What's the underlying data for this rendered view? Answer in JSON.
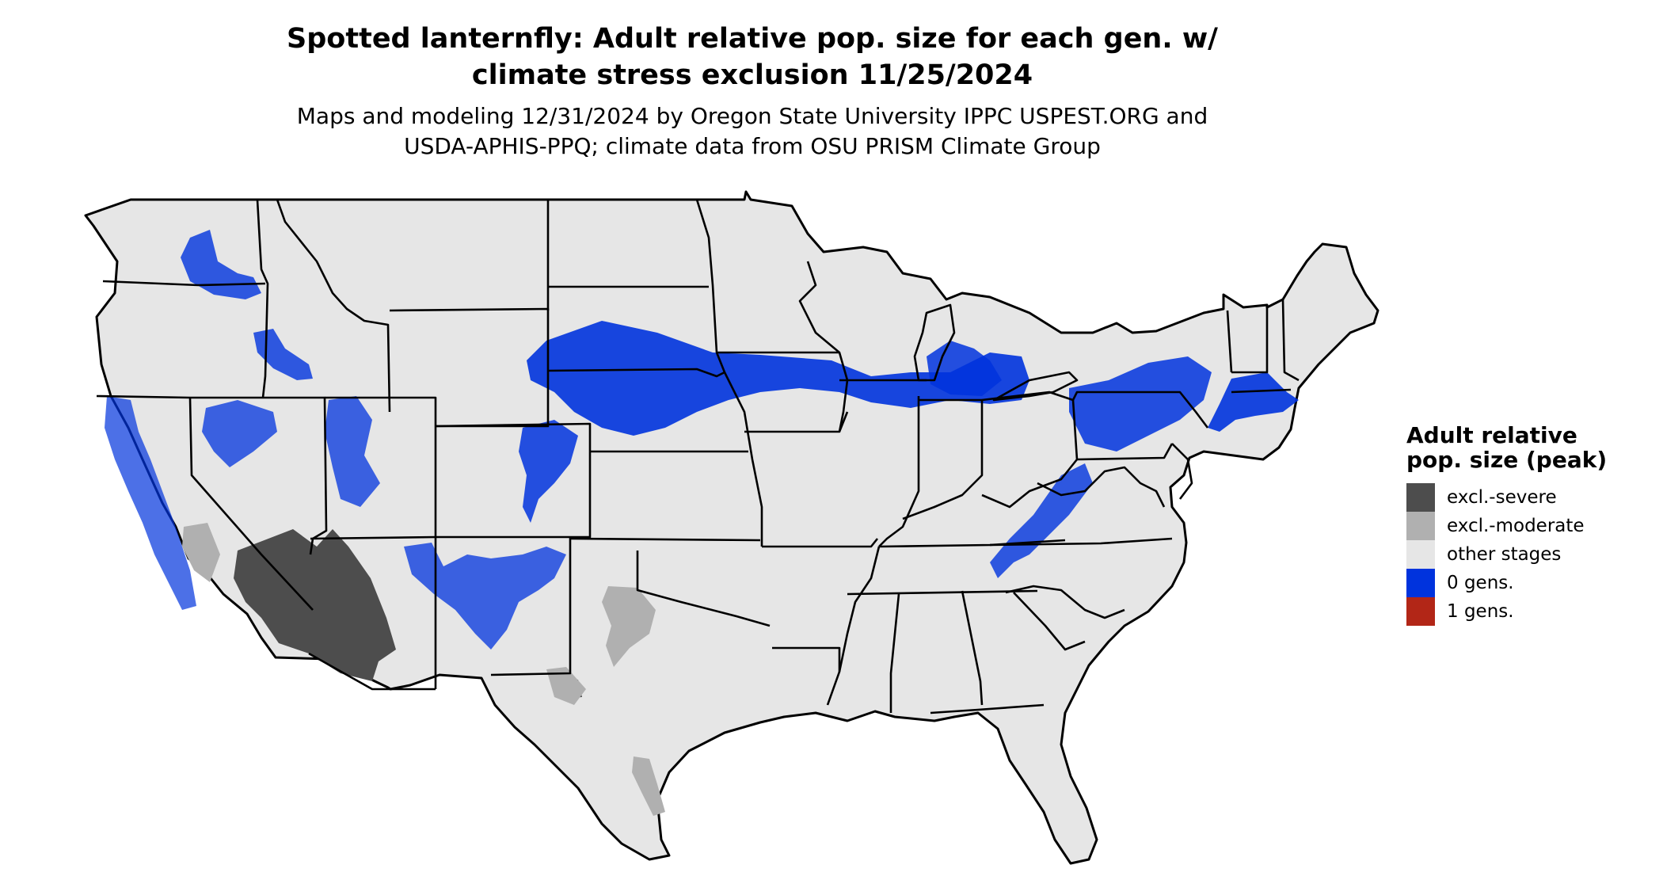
{
  "title_line1": "Spotted lanternfly: Adult relative pop. size for each gen. w/",
  "title_line2": "climate stress exclusion 11/25/2024",
  "subtitle_line1": "Maps and modeling 12/31/2024 by Oregon State University IPPC USPEST.ORG and",
  "subtitle_line2": "USDA-APHIS-PPQ; climate data from OSU PRISM Climate Group",
  "legend": {
    "title": "Adult relative pop. size (peak)",
    "items": [
      {
        "label": "excl.-severe",
        "color": "#4d4d4d"
      },
      {
        "label": "excl.-moderate",
        "color": "#b0b0b0"
      },
      {
        "label": "other stages",
        "color": "#e6e6e6"
      },
      {
        "label": "0 gens.",
        "color": "#0033dd"
      },
      {
        "label": "1 gens.",
        "color": "#b22617"
      }
    ]
  },
  "colors": {
    "land": "#e6e6e6",
    "border": "#000000",
    "zero_gens": "#0033dd",
    "zero_gens_light": "#1e90ff",
    "excl_severe": "#4d4d4d",
    "excl_moderate": "#b0b0b0"
  }
}
